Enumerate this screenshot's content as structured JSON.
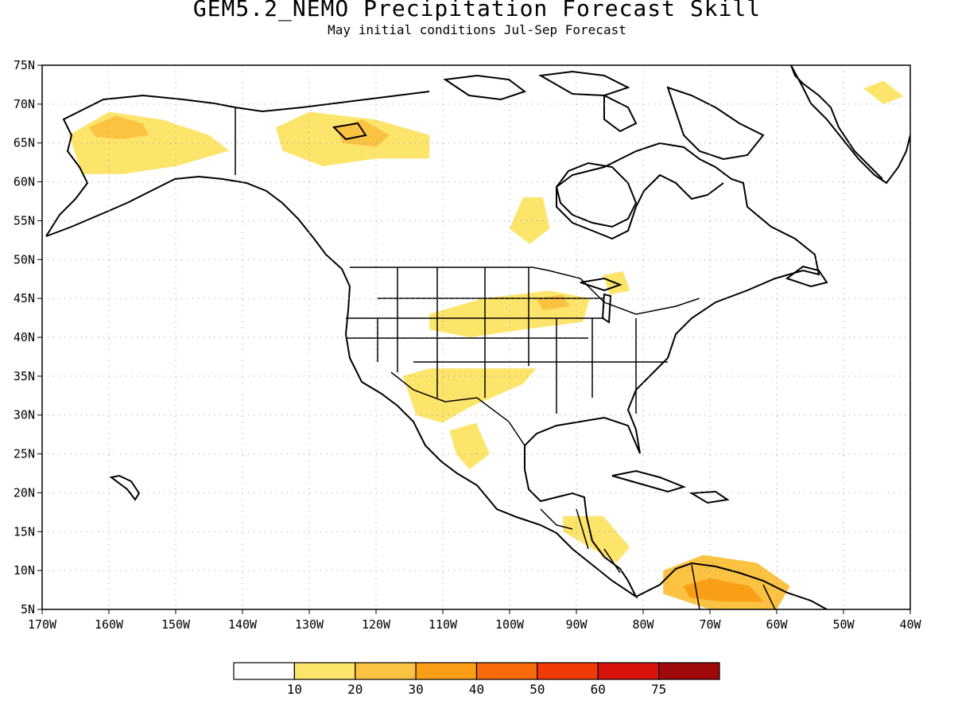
{
  "title": "GEM5.2_NEMO Precipitation Forecast Skill",
  "subtitle": "May initial conditions   Jul-Sep Forecast",
  "map": {
    "projection": "cylindrical equidistant",
    "lon_range": [
      -170,
      -40
    ],
    "lat_range": [
      5,
      75
    ],
    "grid": "dotted",
    "lat_labels": [
      "5N",
      "10N",
      "15N",
      "20N",
      "25N",
      "30N",
      "35N",
      "40N",
      "45N",
      "50N",
      "55N",
      "60N",
      "65N",
      "70N",
      "75N"
    ],
    "lon_labels": [
      "170W",
      "160W",
      "150W",
      "140W",
      "130W",
      "120W",
      "110W",
      "100W",
      "90W",
      "80W",
      "70W",
      "60W",
      "50W",
      "40W"
    ],
    "skill_regions": [
      {
        "name": "western Alaska",
        "level": 1,
        "lon": [
          [
            -166,
            66
          ],
          [
            -160,
            69
          ],
          [
            -152,
            68
          ],
          [
            -145,
            66
          ],
          [
            -142,
            64
          ],
          [
            -150,
            62
          ],
          [
            -158,
            61
          ],
          [
            -164,
            61
          ]
        ]
      },
      {
        "name": "western Alaska core",
        "level": 2,
        "lon": [
          [
            -163,
            67
          ],
          [
            -159,
            68.5
          ],
          [
            -155,
            67.5
          ],
          [
            -154,
            66
          ],
          [
            -158,
            65.5
          ],
          [
            -162,
            65.8
          ]
        ]
      },
      {
        "name": "Yukon / NW Territories",
        "level": 1,
        "lon": [
          [
            -135,
            67
          ],
          [
            -130,
            69
          ],
          [
            -120,
            68
          ],
          [
            -112,
            66
          ],
          [
            -112,
            63
          ],
          [
            -120,
            63
          ],
          [
            -128,
            62
          ],
          [
            -134,
            64
          ]
        ]
      },
      {
        "name": "Mackenzie core",
        "level": 2,
        "lon": [
          [
            -126,
            67
          ],
          [
            -122,
            68
          ],
          [
            -118,
            66
          ],
          [
            -120,
            64.5
          ],
          [
            -125,
            65
          ]
        ]
      },
      {
        "name": "Hudson Bay west",
        "level": 1,
        "lon": [
          [
            -98,
            58
          ],
          [
            -95,
            58
          ],
          [
            -94,
            54
          ],
          [
            -97,
            52
          ],
          [
            -100,
            54
          ]
        ]
      },
      {
        "name": "Hudson Bay southeast",
        "level": 1,
        "lon": [
          [
            -86,
            48
          ],
          [
            -83,
            48.5
          ],
          [
            -82,
            46
          ],
          [
            -85,
            45.5
          ]
        ]
      },
      {
        "name": "Northern Plains",
        "level": 1,
        "lon": [
          [
            -112,
            43
          ],
          [
            -104,
            45
          ],
          [
            -94,
            46
          ],
          [
            -88,
            45
          ],
          [
            -89,
            42
          ],
          [
            -98,
            41
          ],
          [
            -106,
            40
          ],
          [
            -112,
            41
          ]
        ]
      },
      {
        "name": "Northern Plains core",
        "level": 2,
        "lon": [
          [
            -96,
            45
          ],
          [
            -92,
            45.5
          ],
          [
            -91,
            44
          ],
          [
            -95,
            43.5
          ]
        ]
      },
      {
        "name": "Southwest / Monsoon",
        "level": 1,
        "lon": [
          [
            -116,
            35
          ],
          [
            -112,
            36
          ],
          [
            -104,
            36
          ],
          [
            -96,
            36
          ],
          [
            -98,
            34
          ],
          [
            -106,
            31
          ],
          [
            -110,
            29
          ],
          [
            -114,
            30
          ]
        ]
      },
      {
        "name": "Sierra Madre",
        "level": 1,
        "lon": [
          [
            -109,
            28
          ],
          [
            -105,
            29
          ],
          [
            -103,
            25
          ],
          [
            -106,
            23
          ],
          [
            -108,
            25
          ]
        ]
      },
      {
        "name": "Central America",
        "level": 1,
        "lon": [
          [
            -92,
            17
          ],
          [
            -86,
            17
          ],
          [
            -82,
            13
          ],
          [
            -84,
            11
          ],
          [
            -88,
            13
          ],
          [
            -92,
            15
          ]
        ]
      },
      {
        "name": "Northern South America",
        "level": 2,
        "lon": [
          [
            -77,
            10
          ],
          [
            -71,
            12
          ],
          [
            -63,
            11
          ],
          [
            -58,
            8
          ],
          [
            -60,
            5
          ],
          [
            -70,
            5
          ],
          [
            -77,
            7
          ]
        ]
      },
      {
        "name": "Venezuela core",
        "level": 3,
        "lon": [
          [
            -74,
            8
          ],
          [
            -70,
            9
          ],
          [
            -64,
            8
          ],
          [
            -62,
            6
          ],
          [
            -68,
            6
          ],
          [
            -73,
            6.5
          ]
        ]
      },
      {
        "name": "Greenland coast",
        "level": 1,
        "lon": [
          [
            -47,
            72
          ],
          [
            -44,
            73
          ],
          [
            -41,
            71
          ],
          [
            -44,
            70
          ]
        ]
      }
    ]
  },
  "colorbar": {
    "colors": [
      "#ffffff",
      "#fde46b",
      "#fcc242",
      "#fa9e17",
      "#f86a0a",
      "#f23a06",
      "#d8140a",
      "#a00a0a"
    ],
    "labels": [
      "10",
      "20",
      "30",
      "40",
      "50",
      "60",
      "75"
    ]
  }
}
